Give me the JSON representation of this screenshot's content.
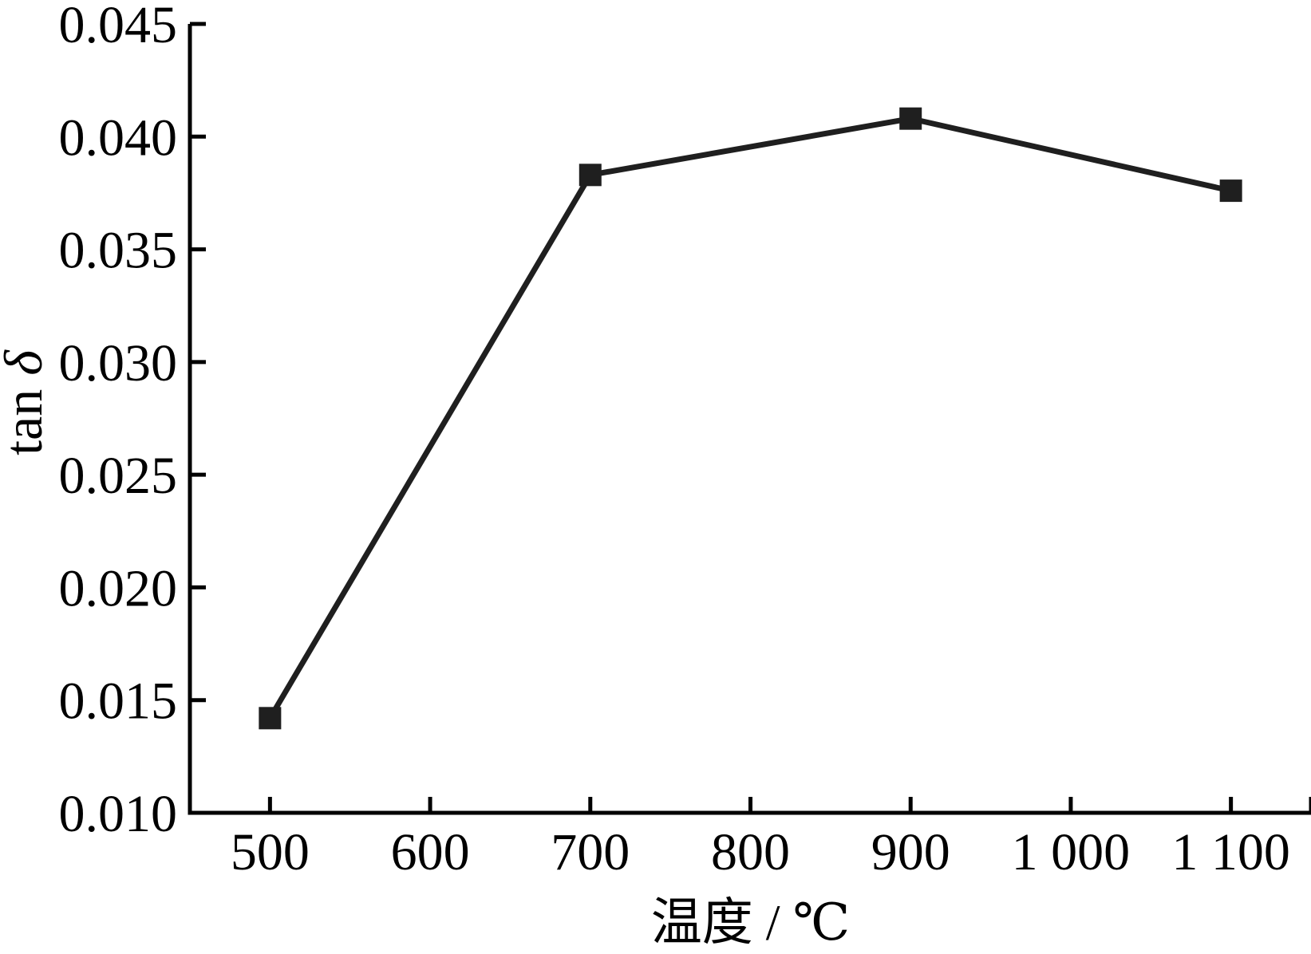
{
  "figure": {
    "background": "#ffffff"
  },
  "chart_data": {
    "type": "line",
    "title": "",
    "xlabel": "温度 / ℃",
    "ylabel": "tan δ",
    "ylabel_parts": {
      "roman": "tan ",
      "greek": "δ"
    },
    "x": [
      500,
      700,
      900,
      1100
    ],
    "y": [
      0.0142,
      0.0383,
      0.0408,
      0.0376
    ],
    "xlim": [
      450,
      1150
    ],
    "ylim": [
      0.01,
      0.045
    ],
    "x_ticks": [
      500,
      600,
      700,
      800,
      900,
      1000,
      1100
    ],
    "x_tick_labels": [
      "500",
      "600",
      "700",
      "800",
      "900",
      "1 000",
      "1 100"
    ],
    "x_ticks_unlabeled": [
      1150
    ],
    "y_ticks": [
      0.01,
      0.015,
      0.02,
      0.025,
      0.03,
      0.035,
      0.04,
      0.045
    ],
    "y_tick_labels": [
      "0.010",
      "0.015",
      "0.020",
      "0.025",
      "0.030",
      "0.035",
      "0.040",
      "0.045"
    ],
    "grid": false,
    "legend": "none",
    "tick_direction": "in",
    "marker": "filled-square",
    "colors": {
      "line": "#1f1f1f",
      "marker": "#1f1f1f",
      "axis": "#000000",
      "text": "#000000",
      "background": "#ffffff"
    }
  }
}
